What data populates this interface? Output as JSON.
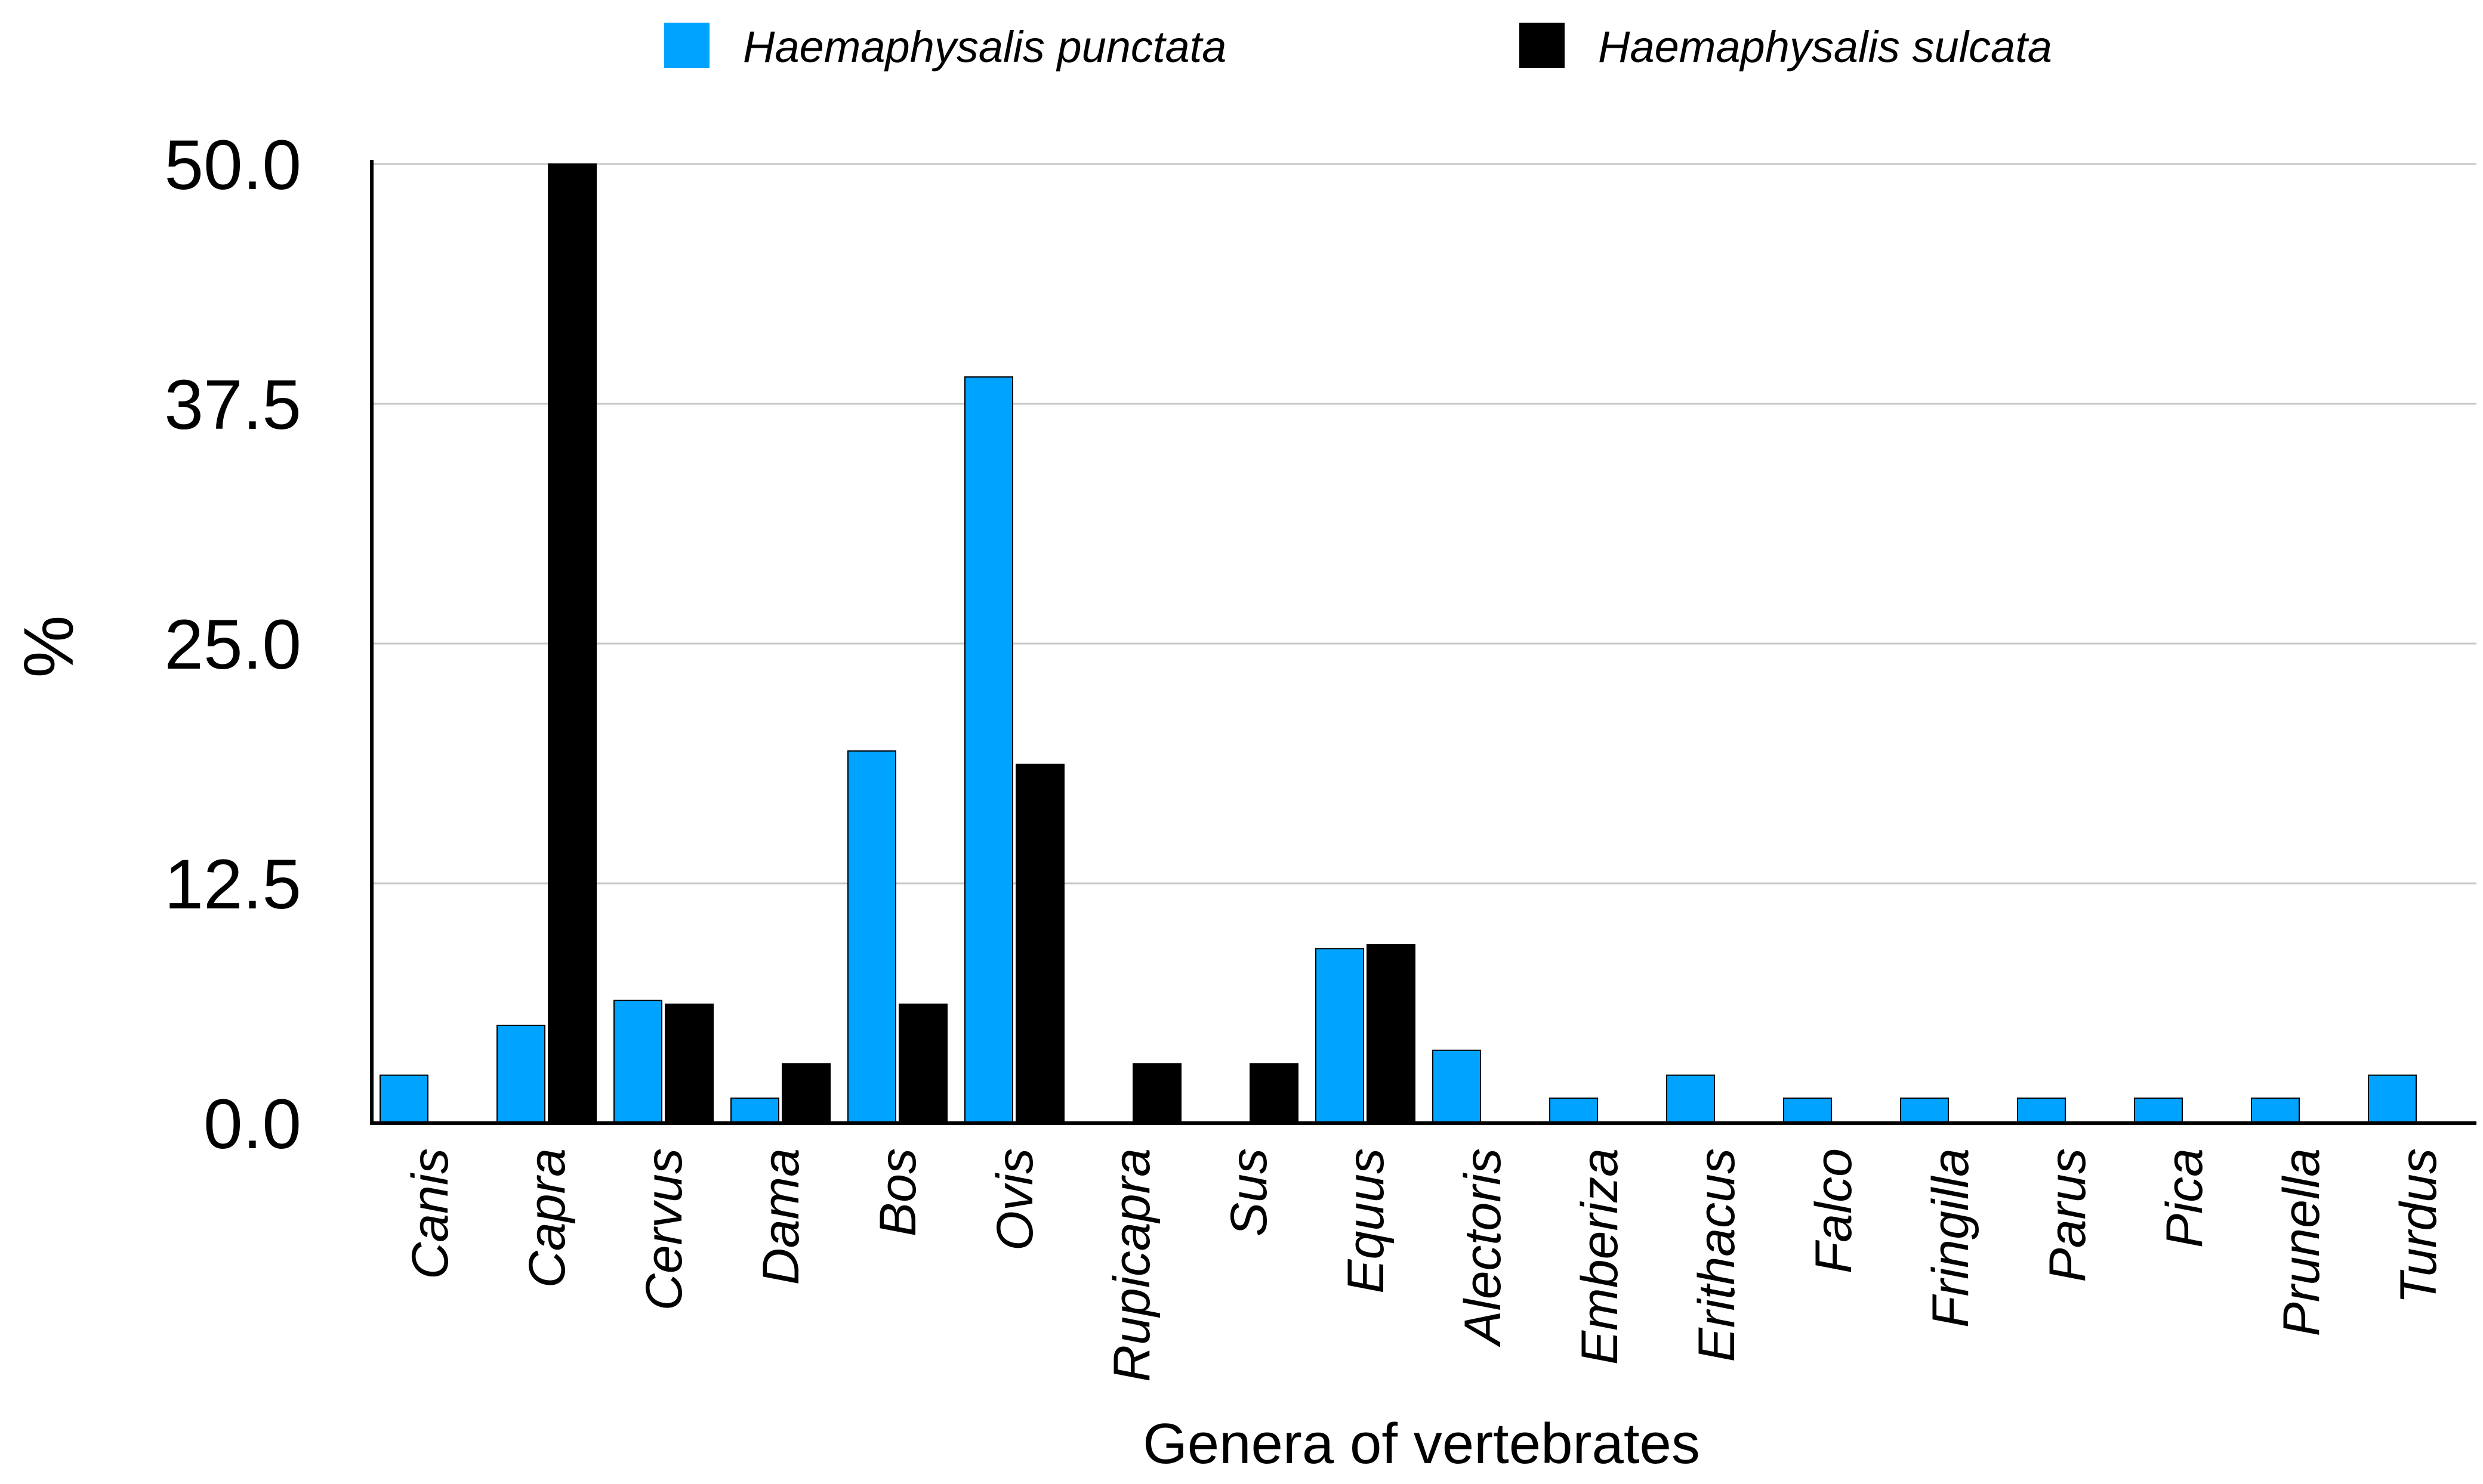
{
  "chart_data": {
    "type": "bar",
    "title": "",
    "xlabel": "Genera of vertebrates",
    "ylabel": "%",
    "ylim": [
      0,
      50
    ],
    "yticks": [
      "0.0",
      "12.5",
      "25.0",
      "37.5",
      "50.0"
    ],
    "ytick_values": [
      0,
      12.5,
      25,
      37.5,
      50
    ],
    "grid": true,
    "legend_position": "top-center",
    "categories": [
      "Canis",
      "Capra",
      "Cervus",
      "Dama",
      "Bos",
      "Ovis",
      "Rupicapra",
      "Sus",
      "Equus",
      "Alectoris",
      "Emberiza",
      "Erithacus",
      "Falco",
      "Fringilla",
      "Parus",
      "Pica",
      "Prunella",
      "Turdus"
    ],
    "series": [
      {
        "name": "Haemaphysalis punctata",
        "color": "#00a3ff",
        "values": [
          2.5,
          5.1,
          6.4,
          1.3,
          19.4,
          38.9,
          0,
          0,
          9.1,
          3.8,
          1.3,
          2.5,
          1.3,
          1.3,
          1.3,
          1.3,
          1.3,
          2.5
        ]
      },
      {
        "name": "Haemaphysalis sulcata",
        "color": "#000000",
        "values": [
          0,
          50.0,
          6.2,
          3.1,
          6.2,
          18.7,
          3.1,
          3.1,
          9.3,
          0,
          0,
          0,
          0,
          0,
          0,
          0,
          0,
          0
        ]
      }
    ]
  }
}
